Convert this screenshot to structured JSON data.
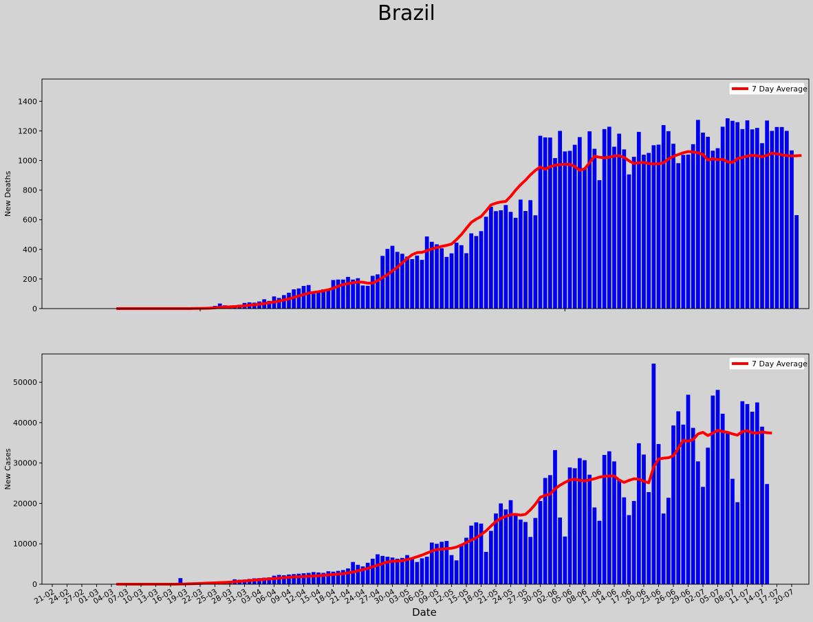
{
  "figure": {
    "title": "Brazil"
  },
  "colors": {
    "background": "#d3d3d3",
    "bar": "#0000ee",
    "average": "#ff0000",
    "legend_bg": "#ffffff"
  },
  "shared_x": {
    "start_date": "2020-02-21",
    "tick_labels": [
      "21-02",
      "24-02",
      "27-02",
      "01-03",
      "04-03",
      "07-03",
      "10-03",
      "13-03",
      "16-03",
      "19-03",
      "22-03",
      "25-03",
      "28-03",
      "31-03",
      "03-04",
      "06-04",
      "09-04",
      "12-04",
      "15-04",
      "18-04",
      "21-04",
      "24-04",
      "27-04",
      "30-04",
      "03-05",
      "06-05",
      "09-05",
      "12-05",
      "15-05",
      "18-05",
      "21-05",
      "24-05",
      "27-05",
      "30-05",
      "02-06",
      "05-06",
      "08-06",
      "11-06",
      "14-06",
      "17-06",
      "20-06",
      "23-06",
      "26-06",
      "29-06",
      "02-07",
      "05-07",
      "08-07",
      "11-07",
      "14-07",
      "17-07",
      "20-07"
    ],
    "xlabel": "Date",
    "bar_start_date": "2020-03-05"
  },
  "chart_data": [
    {
      "type": "bar",
      "title": "",
      "ylabel": "New Deaths",
      "xlabel": "",
      "ylim": [
        0,
        1550
      ],
      "yticks": [
        0,
        200,
        400,
        600,
        800,
        1000,
        1200,
        1400
      ],
      "x_start": "2020-03-05",
      "values": [
        0,
        0,
        0,
        0,
        0,
        0,
        0,
        0,
        0,
        0,
        0,
        0,
        0,
        1,
        1,
        3,
        4,
        7,
        9,
        12,
        18,
        34,
        22,
        16,
        23,
        26,
        38,
        42,
        40,
        48,
        63,
        52,
        82,
        72,
        91,
        107,
        130,
        136,
        153,
        159,
        101,
        110,
        130,
        131,
        193,
        196,
        196,
        214,
        196,
        205,
        156,
        154,
        221,
        231,
        356,
        403,
        424,
        383,
        370,
        351,
        334,
        358,
        329,
        487,
        451,
        434,
        407,
        349,
        373,
        445,
        428,
        374,
        508,
        490,
        523,
        620,
        688,
        658,
        664,
        699,
        653,
        613,
        736,
        659,
        732,
        630,
        1167,
        1156,
        1155,
        1016,
        1200,
        1061,
        1065,
        1106,
        1158,
        948,
        1197,
        1079,
        867,
        1212,
        1228,
        1093,
        1181,
        1075,
        906,
        1025,
        1193,
        1039,
        1051,
        1103,
        1107,
        1239,
        1198,
        1113,
        982,
        1038,
        1040,
        1110,
        1274,
        1188,
        1160,
        1066,
        1083,
        1228,
        1285,
        1268,
        1259,
        1212,
        1271,
        1210,
        1220,
        1117,
        1270,
        1200,
        1226,
        1226,
        1200,
        1068,
        631
      ],
      "series": [
        {
          "name": "7 Day Average",
          "type": "line",
          "values": [
            0,
            0,
            0,
            0,
            0,
            0,
            0,
            0,
            0,
            0,
            0,
            0,
            0,
            0,
            0,
            0,
            1,
            1,
            2,
            3,
            5,
            9,
            11,
            12,
            14,
            16,
            19,
            23,
            26,
            29,
            34,
            39,
            45,
            51,
            58,
            66,
            76,
            85,
            95,
            104,
            110,
            114,
            120,
            127,
            138,
            151,
            162,
            169,
            175,
            179,
            178,
            172,
            173,
            188,
            210,
            229,
            254,
            279,
            309,
            338,
            364,
            378,
            380,
            391,
            403,
            412,
            420,
            427,
            436,
            466,
            500,
            542,
            582,
            604,
            622,
            660,
            700,
            712,
            720,
            724,
            758,
            800,
            836,
            867,
            903,
            933,
            956,
            941,
            958,
            968,
            972,
            975,
            974,
            960,
            934,
            944,
            985,
            1029,
            1022,
            1018,
            1022,
            1030,
            1032,
            1021,
            998,
            980,
            985,
            987,
            979,
            976,
            978,
            985,
            1010,
            1028,
            1040,
            1052,
            1060,
            1058,
            1052,
            1041,
            1003,
            1012,
            1006,
            1008,
            991,
            986,
            1012,
            1020,
            1030,
            1035,
            1032,
            1025,
            1035,
            1050,
            1045,
            1038,
            1033,
            1030,
            1032,
            1034
          ]
        }
      ]
    },
    {
      "type": "bar",
      "title": "",
      "ylabel": "New Cases",
      "xlabel": "Date",
      "ylim": [
        0,
        57000
      ],
      "yticks": [
        0,
        10000,
        20000,
        30000,
        40000,
        50000
      ],
      "x_start": "2020-03-05",
      "values": [
        0,
        0,
        0,
        0,
        0,
        0,
        0,
        0,
        0,
        0,
        0,
        0,
        0,
        1500,
        100,
        200,
        300,
        250,
        350,
        400,
        500,
        600,
        700,
        800,
        1200,
        1100,
        1150,
        1300,
        1450,
        1500,
        1600,
        1700,
        2100,
        2300,
        2200,
        2400,
        2500,
        2600,
        2700,
        2800,
        3000,
        2900,
        2800,
        3200,
        3100,
        3300,
        3500,
        3900,
        5500,
        4800,
        4400,
        5300,
        6300,
        7400,
        7000,
        6800,
        6600,
        6300,
        6500,
        7200,
        6400,
        5500,
        6400,
        6800,
        10300,
        10000,
        10500,
        10700,
        7200,
        5900,
        9900,
        11500,
        14500,
        15300,
        15000,
        8000,
        13200,
        17500,
        20000,
        18500,
        20800,
        17400,
        16000,
        15400,
        11700,
        16400,
        20600,
        26300,
        27000,
        33200,
        16500,
        11800,
        28900,
        28700,
        31200,
        30700,
        27100,
        19000,
        15700,
        32000,
        32900,
        30400,
        26000,
        21500,
        17100,
        20600,
        34900,
        32100,
        22800,
        54600,
        34700,
        17500,
        21400,
        39300,
        42800,
        39500,
        46900,
        38700,
        30400,
        24100,
        33800,
        46700,
        48100,
        42200,
        37800,
        26100,
        20300,
        45300,
        44600,
        42700,
        45000,
        39000,
        24800
      ],
      "series": [
        {
          "name": "7 Day Average",
          "type": "line",
          "values": [
            0,
            0,
            0,
            0,
            0,
            0,
            0,
            0,
            0,
            0,
            0,
            0,
            0,
            50,
            60,
            100,
            150,
            200,
            250,
            300,
            350,
            400,
            450,
            500,
            600,
            700,
            800,
            900,
            1000,
            1100,
            1200,
            1300,
            1400,
            1500,
            1600,
            1700,
            1800,
            1850,
            1900,
            1950,
            2000,
            2100,
            2200,
            2300,
            2400,
            2500,
            2600,
            2800,
            3000,
            3300,
            3600,
            3900,
            4300,
            4700,
            5100,
            5500,
            5700,
            5700,
            5800,
            6100,
            6400,
            6800,
            7200,
            7700,
            8200,
            8600,
            8700,
            8800,
            8900,
            9200,
            9700,
            10300,
            10900,
            11500,
            12300,
            13200,
            14400,
            15500,
            16300,
            16800,
            17200,
            17300,
            17100,
            17300,
            18400,
            19800,
            21500,
            22000,
            22300,
            23600,
            24500,
            25200,
            25800,
            26000,
            25700,
            25600,
            25800,
            26100,
            26500,
            26700,
            26800,
            26800,
            25800,
            25200,
            25700,
            26100,
            26000,
            25500,
            25100,
            29000,
            31000,
            31200,
            31300,
            31800,
            33600,
            35600,
            35400,
            35800,
            37200,
            37600,
            36800,
            37400,
            38100,
            37800,
            37600,
            37200,
            36900,
            37800,
            38000,
            37500,
            37400,
            37700,
            37500,
            37400
          ]
        }
      ]
    }
  ]
}
